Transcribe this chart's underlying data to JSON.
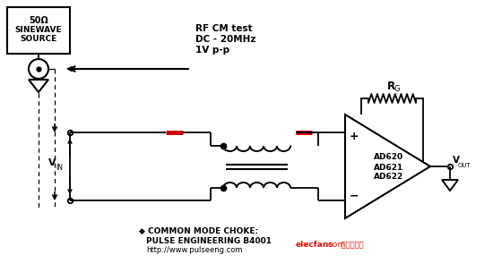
{
  "bg_color": "#ffffff",
  "line_color": "#000000",
  "red_color": "#cc0000",
  "choke_label": "◆ COMMON MODE CHOKE:",
  "choke_line2": "PULSE ENGINEERING B4001",
  "choke_line3": "http://www.pulseeng.com",
  "watermark1": "elecfans",
  "watermark2": ".com",
  "watermark3": " 电子发烧友",
  "figsize": [
    5.5,
    3.04
  ],
  "dpi": 100
}
